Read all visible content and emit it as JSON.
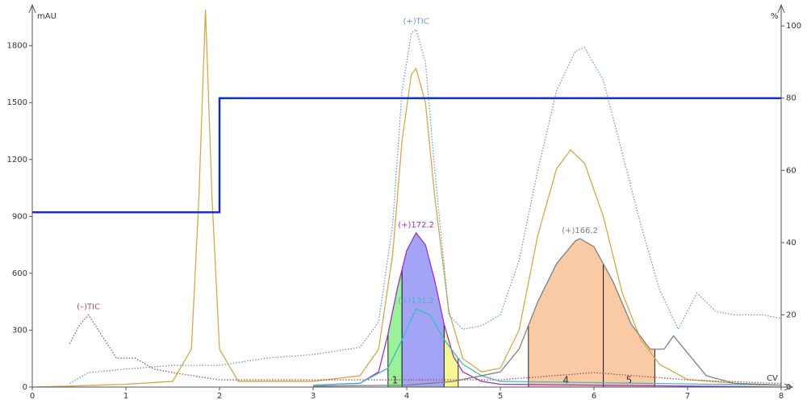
{
  "chart_data": {
    "type": "line",
    "y_label": "mAU",
    "y2_label": "%",
    "x_label": "CV",
    "xlim": [
      0,
      8
    ],
    "xticks": [
      0,
      1,
      2,
      3,
      4,
      5,
      6,
      7,
      8
    ],
    "ylim": [
      0,
      1990
    ],
    "yticks": [
      0,
      300,
      600,
      900,
      1200,
      1500,
      1800
    ],
    "y2lim": [
      0,
      104.5
    ],
    "y2ticks": [
      0,
      20,
      40,
      60,
      80,
      100
    ],
    "series": [
      {
        "color": "#d4a84a",
        "dash": false,
        "x": [
          0,
          0.4,
          1.0,
          1.5,
          1.7,
          1.78,
          1.85,
          1.92,
          2.0,
          2.2,
          3.0,
          3.5,
          3.7,
          3.85,
          3.95,
          4.05,
          4.1,
          4.2,
          4.3,
          4.45,
          4.6,
          4.8,
          5.0,
          5.2,
          5.4,
          5.6,
          5.75,
          5.9,
          6.1,
          6.3,
          6.5,
          6.7,
          7.0,
          7.5,
          8.0
        ],
        "values": [
          0,
          5,
          15,
          30,
          200,
          1000,
          1990,
          1000,
          200,
          30,
          30,
          60,
          200,
          700,
          1300,
          1650,
          1680,
          1500,
          1000,
          400,
          150,
          80,
          100,
          300,
          800,
          1150,
          1250,
          1180,
          900,
          500,
          250,
          120,
          40,
          20,
          10
        ]
      },
      {
        "name": "(+)TIC",
        "color": "#6a9ac8",
        "dash": true,
        "axis": "y2",
        "x": [
          0.4,
          0.6,
          1,
          1.5,
          2,
          2.5,
          3,
          3.5,
          3.7,
          3.85,
          3.95,
          4.05,
          4.1,
          4.2,
          4.3,
          4.45,
          4.6,
          4.8,
          5.0,
          5.2,
          5.4,
          5.6,
          5.8,
          5.9,
          6.1,
          6.3,
          6.5,
          6.7,
          6.9,
          7.1,
          7.3,
          7.5,
          7.8,
          8.0
        ],
        "values": [
          1,
          4,
          5,
          6,
          6,
          8,
          9,
          11,
          18,
          45,
          82,
          98,
          99,
          90,
          60,
          20,
          16,
          17,
          20,
          35,
          60,
          82,
          93,
          94,
          85,
          65,
          45,
          27,
          16,
          26,
          21,
          20,
          20,
          19
        ]
      },
      {
        "name": "(–)TIC",
        "color": "#b05050",
        "dash": true,
        "axis": "y2",
        "x": [
          0.4,
          0.5,
          0.6,
          0.7,
          0.9,
          1.1,
          1.3,
          1.5,
          2,
          3,
          4,
          5,
          6,
          7,
          8
        ],
        "values": [
          12,
          17,
          20,
          16,
          8,
          8,
          5,
          4,
          2,
          2,
          2,
          2,
          4,
          2,
          1
        ]
      },
      {
        "name": "(+)172.2",
        "color": "#9b30d0",
        "dash": false,
        "x": [
          3.0,
          3.5,
          3.7,
          3.8,
          3.9,
          4.0,
          4.1,
          4.2,
          4.3,
          4.4,
          4.5,
          4.6,
          4.8,
          5.0,
          6.0,
          7.0,
          8.0
        ],
        "values": [
          10,
          20,
          80,
          280,
          520,
          720,
          813,
          750,
          560,
          330,
          160,
          80,
          30,
          15,
          10,
          5,
          0
        ]
      },
      {
        "name": "(+)131.2",
        "color": "#40b8c8",
        "dash": false,
        "x": [
          3.0,
          3.5,
          3.8,
          3.95,
          4.1,
          4.25,
          4.4,
          4.6,
          4.8,
          5.0,
          8.0
        ],
        "values": [
          10,
          20,
          100,
          250,
          413,
          380,
          250,
          120,
          60,
          30,
          10
        ]
      },
      {
        "name": "(+)166.2",
        "color": "#808080",
        "dash": false,
        "x": [
          3.0,
          4.0,
          4.5,
          5.0,
          5.2,
          5.4,
          5.6,
          5.8,
          5.85,
          6.0,
          6.2,
          6.4,
          6.6,
          6.75,
          6.85,
          7.0,
          7.2,
          7.5,
          8.0
        ],
        "values": [
          5,
          10,
          30,
          80,
          200,
          450,
          650,
          770,
          783,
          740,
          560,
          330,
          200,
          200,
          270,
          180,
          60,
          20,
          10
        ]
      },
      {
        "color": "#1a2ed0",
        "dash": false,
        "axis": "y2",
        "width": 2.5,
        "x": [
          0,
          2,
          2,
          8
        ],
        "values": [
          48.4,
          48.4,
          80,
          80
        ]
      }
    ],
    "fractions": [
      {
        "label": "1",
        "start": 3.8,
        "end": 3.95,
        "color": "#8ef08e"
      },
      {
        "start": 3.95,
        "end": 4.4,
        "color": "#9a9af5"
      },
      {
        "start": 4.4,
        "end": 4.55,
        "color": "#f5f58a"
      },
      {
        "label": "4",
        "start": 5.3,
        "end": 6.1,
        "color": "#f8c49a"
      },
      {
        "label": "5",
        "start": 6.1,
        "end": 6.65,
        "color": "#f8c49a"
      }
    ]
  }
}
